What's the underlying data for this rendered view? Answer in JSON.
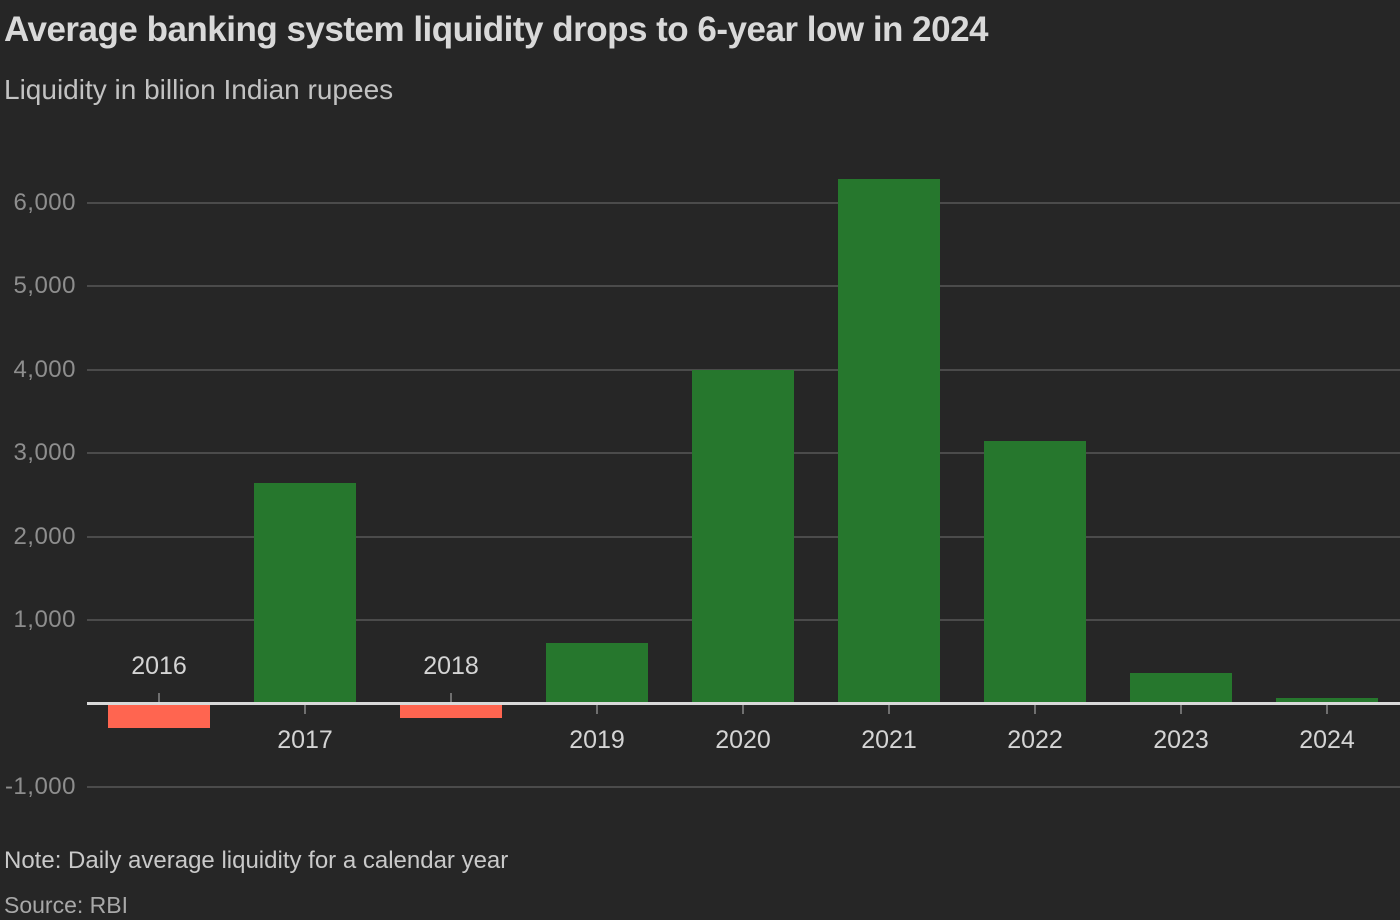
{
  "chart_data": {
    "type": "bar",
    "title": "Average banking system liquidity drops to 6-year low in 2024",
    "subtitle": "Liquidity in billion Indian rupees",
    "note": "Note: Daily average liquidity for a calendar year",
    "source": "Source: RBI",
    "categories": [
      "2016",
      "2017",
      "2018",
      "2019",
      "2020",
      "2021",
      "2022",
      "2023",
      "2024"
    ],
    "values": [
      -280,
      2640,
      -160,
      730,
      4000,
      6280,
      3140,
      370,
      70
    ],
    "xlabel": "",
    "ylabel": "Liquidity (billion Indian rupees)",
    "ylim": [
      -1000,
      6500
    ],
    "yticks": [
      {
        "value": 6000,
        "label": "6,000"
      },
      {
        "value": 5000,
        "label": "5,000"
      },
      {
        "value": 4000,
        "label": "4,000"
      },
      {
        "value": 3000,
        "label": "3,000"
      },
      {
        "value": 2000,
        "label": "2,000"
      },
      {
        "value": 1000,
        "label": "1,000"
      },
      {
        "value": -1000,
        "label": "-1,000"
      }
    ],
    "grid": true,
    "legend": false,
    "colors": {
      "background": "#262626",
      "positive_bar": "#26772d",
      "negative_bar": "#ff6550",
      "axis_line": "#d9d9d9",
      "gridline": "#4b4b4b",
      "y_tick_text": "#8e8e8e",
      "x_tick_text": "#d4d4d4",
      "title_text": "#d9d9d9",
      "subtitle_text": "#c2c2c2",
      "note_text": "#c9c9c9",
      "source_text": "#a8a8a8"
    }
  }
}
